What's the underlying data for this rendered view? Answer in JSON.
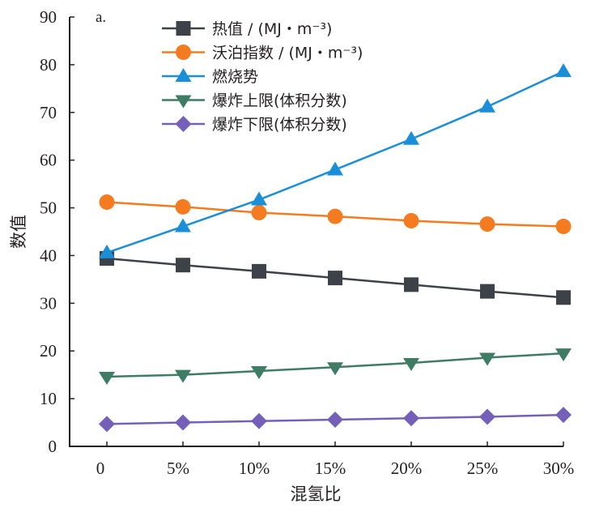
{
  "chart_data": {
    "type": "line",
    "panel_label": "a.",
    "title": "",
    "xlabel": "混氢比",
    "ylabel": "数值",
    "categories": [
      "0",
      "5%",
      "10%",
      "15%",
      "20%",
      "25%",
      "30%"
    ],
    "ylim": [
      0,
      90
    ],
    "yticks": [
      0,
      10,
      20,
      30,
      40,
      50,
      60,
      70,
      80,
      90
    ],
    "grid": false,
    "legend_position": "top-center",
    "series": [
      {
        "name": "热值 / (MJ・m⁻³)",
        "marker": "square",
        "color": "#3d4148",
        "values": [
          39.4,
          38.0,
          36.7,
          35.3,
          33.9,
          32.5,
          31.2
        ]
      },
      {
        "name": "沃泊指数 / (MJ・m⁻³)",
        "marker": "circle",
        "color": "#f47b20",
        "values": [
          51.2,
          50.2,
          49.0,
          48.2,
          47.3,
          46.6,
          46.1
        ]
      },
      {
        "name": "燃烧势",
        "marker": "triangle-up",
        "color": "#1a8fd8",
        "values": [
          40.6,
          46.1,
          51.7,
          58.0,
          64.4,
          71.2,
          78.6
        ]
      },
      {
        "name": "爆炸上限(体积分数)",
        "marker": "triangle-down",
        "color": "#3e7c65",
        "values": [
          14.6,
          15.0,
          15.8,
          16.6,
          17.5,
          18.6,
          19.5
        ]
      },
      {
        "name": "爆炸下限(体积分数)",
        "marker": "diamond",
        "color": "#7460b8",
        "values": [
          4.7,
          5.0,
          5.3,
          5.6,
          5.9,
          6.2,
          6.6
        ]
      }
    ]
  }
}
